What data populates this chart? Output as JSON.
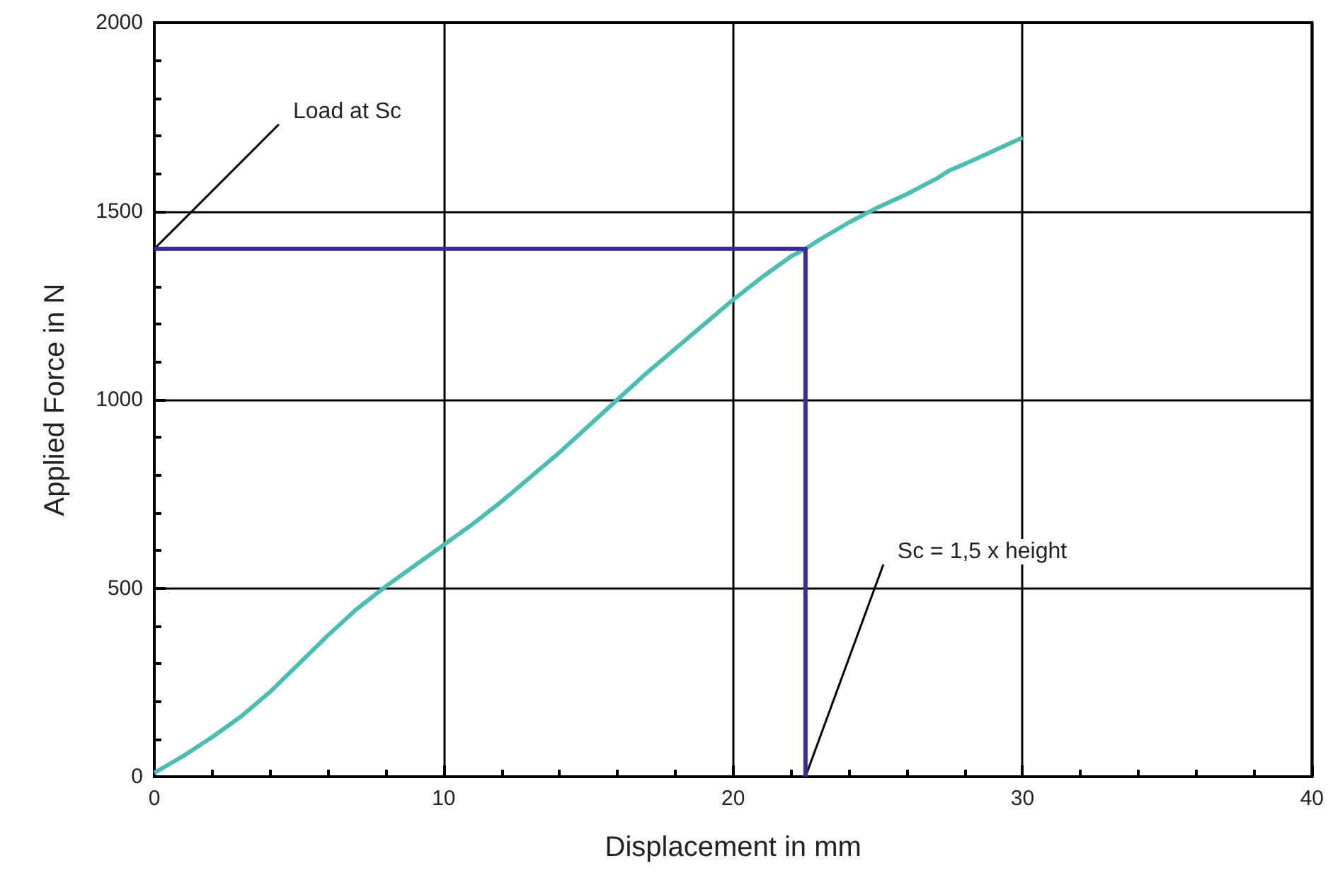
{
  "chart_data": {
    "type": "line",
    "xlabel": "Displacement in mm",
    "ylabel": "Applied Force in N",
    "xlim": [
      0,
      40
    ],
    "xticks": [
      0,
      10,
      20,
      30,
      40
    ],
    "ylim": [
      0,
      2000
    ],
    "yticks": [
      0,
      500,
      1000,
      1500,
      2000
    ],
    "grid": true,
    "marker": "none",
    "line_style": "solid",
    "series": [
      {
        "color": "#4dbdb0",
        "x": [
          0,
          1,
          2,
          3,
          4,
          5,
          6,
          7,
          8,
          9,
          10,
          11,
          12,
          13,
          14,
          15,
          16,
          17,
          18,
          19,
          20,
          21,
          22,
          22.5,
          23,
          24,
          25,
          26,
          27,
          27.5,
          28,
          29,
          30
        ],
        "values": [
          10,
          55,
          105,
          160,
          225,
          300,
          375,
          445,
          505,
          560,
          615,
          670,
          730,
          795,
          860,
          930,
          1000,
          1070,
          1135,
          1200,
          1265,
          1325,
          1380,
          1400,
          1425,
          1470,
          1510,
          1545,
          1585,
          1609,
          1625,
          1660,
          1695
        ]
      },
      {
        "color": "#3d2c8d",
        "x": [
          0,
          22.5,
          22.5
        ],
        "values": [
          1400,
          1400,
          0
        ]
      }
    ],
    "annotations": [
      {
        "text": "Load at Sc",
        "x": 0,
        "y": 1400
      },
      {
        "text": "Sc = 1,5 x height",
        "x": 22.5,
        "y": 0
      }
    ]
  }
}
